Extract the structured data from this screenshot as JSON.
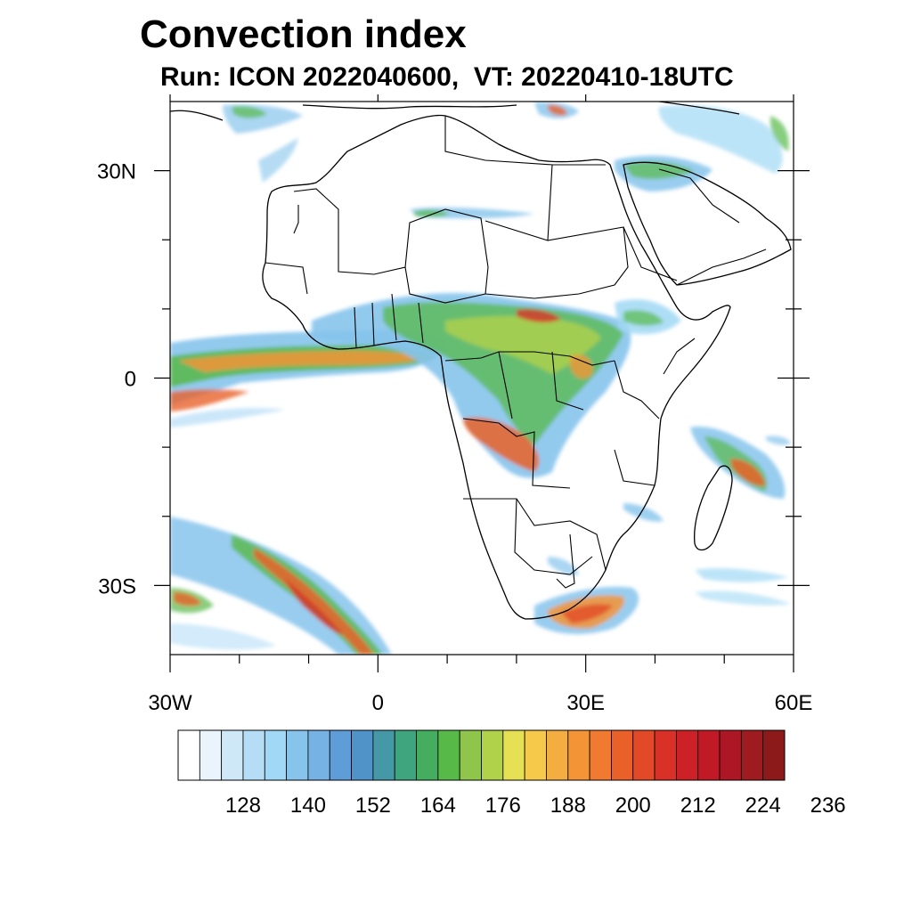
{
  "title": "Convection index",
  "subtitle": "Run: ICON 2022040600,  VT: 20220410-18UTC",
  "map": {
    "lon_range": [
      -30,
      60
    ],
    "lat_range": [
      -40,
      40
    ],
    "lon_ticks": [
      {
        "value": -30,
        "label": "30W"
      },
      {
        "value": 0,
        "label": "0"
      },
      {
        "value": 30,
        "label": "30E"
      },
      {
        "value": 60,
        "label": "60E"
      }
    ],
    "lat_ticks": [
      {
        "value": 30,
        "label": "30N"
      },
      {
        "value": 0,
        "label": "0"
      },
      {
        "value": -30,
        "label": "30S"
      }
    ],
    "minor_lon_ticks": [
      -20,
      -10,
      10,
      20,
      40,
      50
    ],
    "minor_lat_ticks": [
      20,
      10,
      -10,
      -20
    ]
  },
  "colorbar": {
    "colors": [
      "#ffffff",
      "#e9f4fc",
      "#cfe8f8",
      "#b6ddf6",
      "#a0d8f5",
      "#86c4ec",
      "#76b2e3",
      "#5f9dd8",
      "#4f93c9",
      "#4599a7",
      "#3fa57f",
      "#45ad5f",
      "#57b948",
      "#8ec54a",
      "#b0d14a",
      "#e6e054",
      "#f7c94a",
      "#f4ad40",
      "#f39536",
      "#ef7a30",
      "#e96129",
      "#e24a27",
      "#d93127",
      "#cc2127",
      "#bf1a26",
      "#ad1624",
      "#9e1c20",
      "#8c1a1a"
    ],
    "labels": [
      "128",
      "140",
      "152",
      "164",
      "176",
      "188",
      "200",
      "212",
      "224",
      "236"
    ]
  }
}
